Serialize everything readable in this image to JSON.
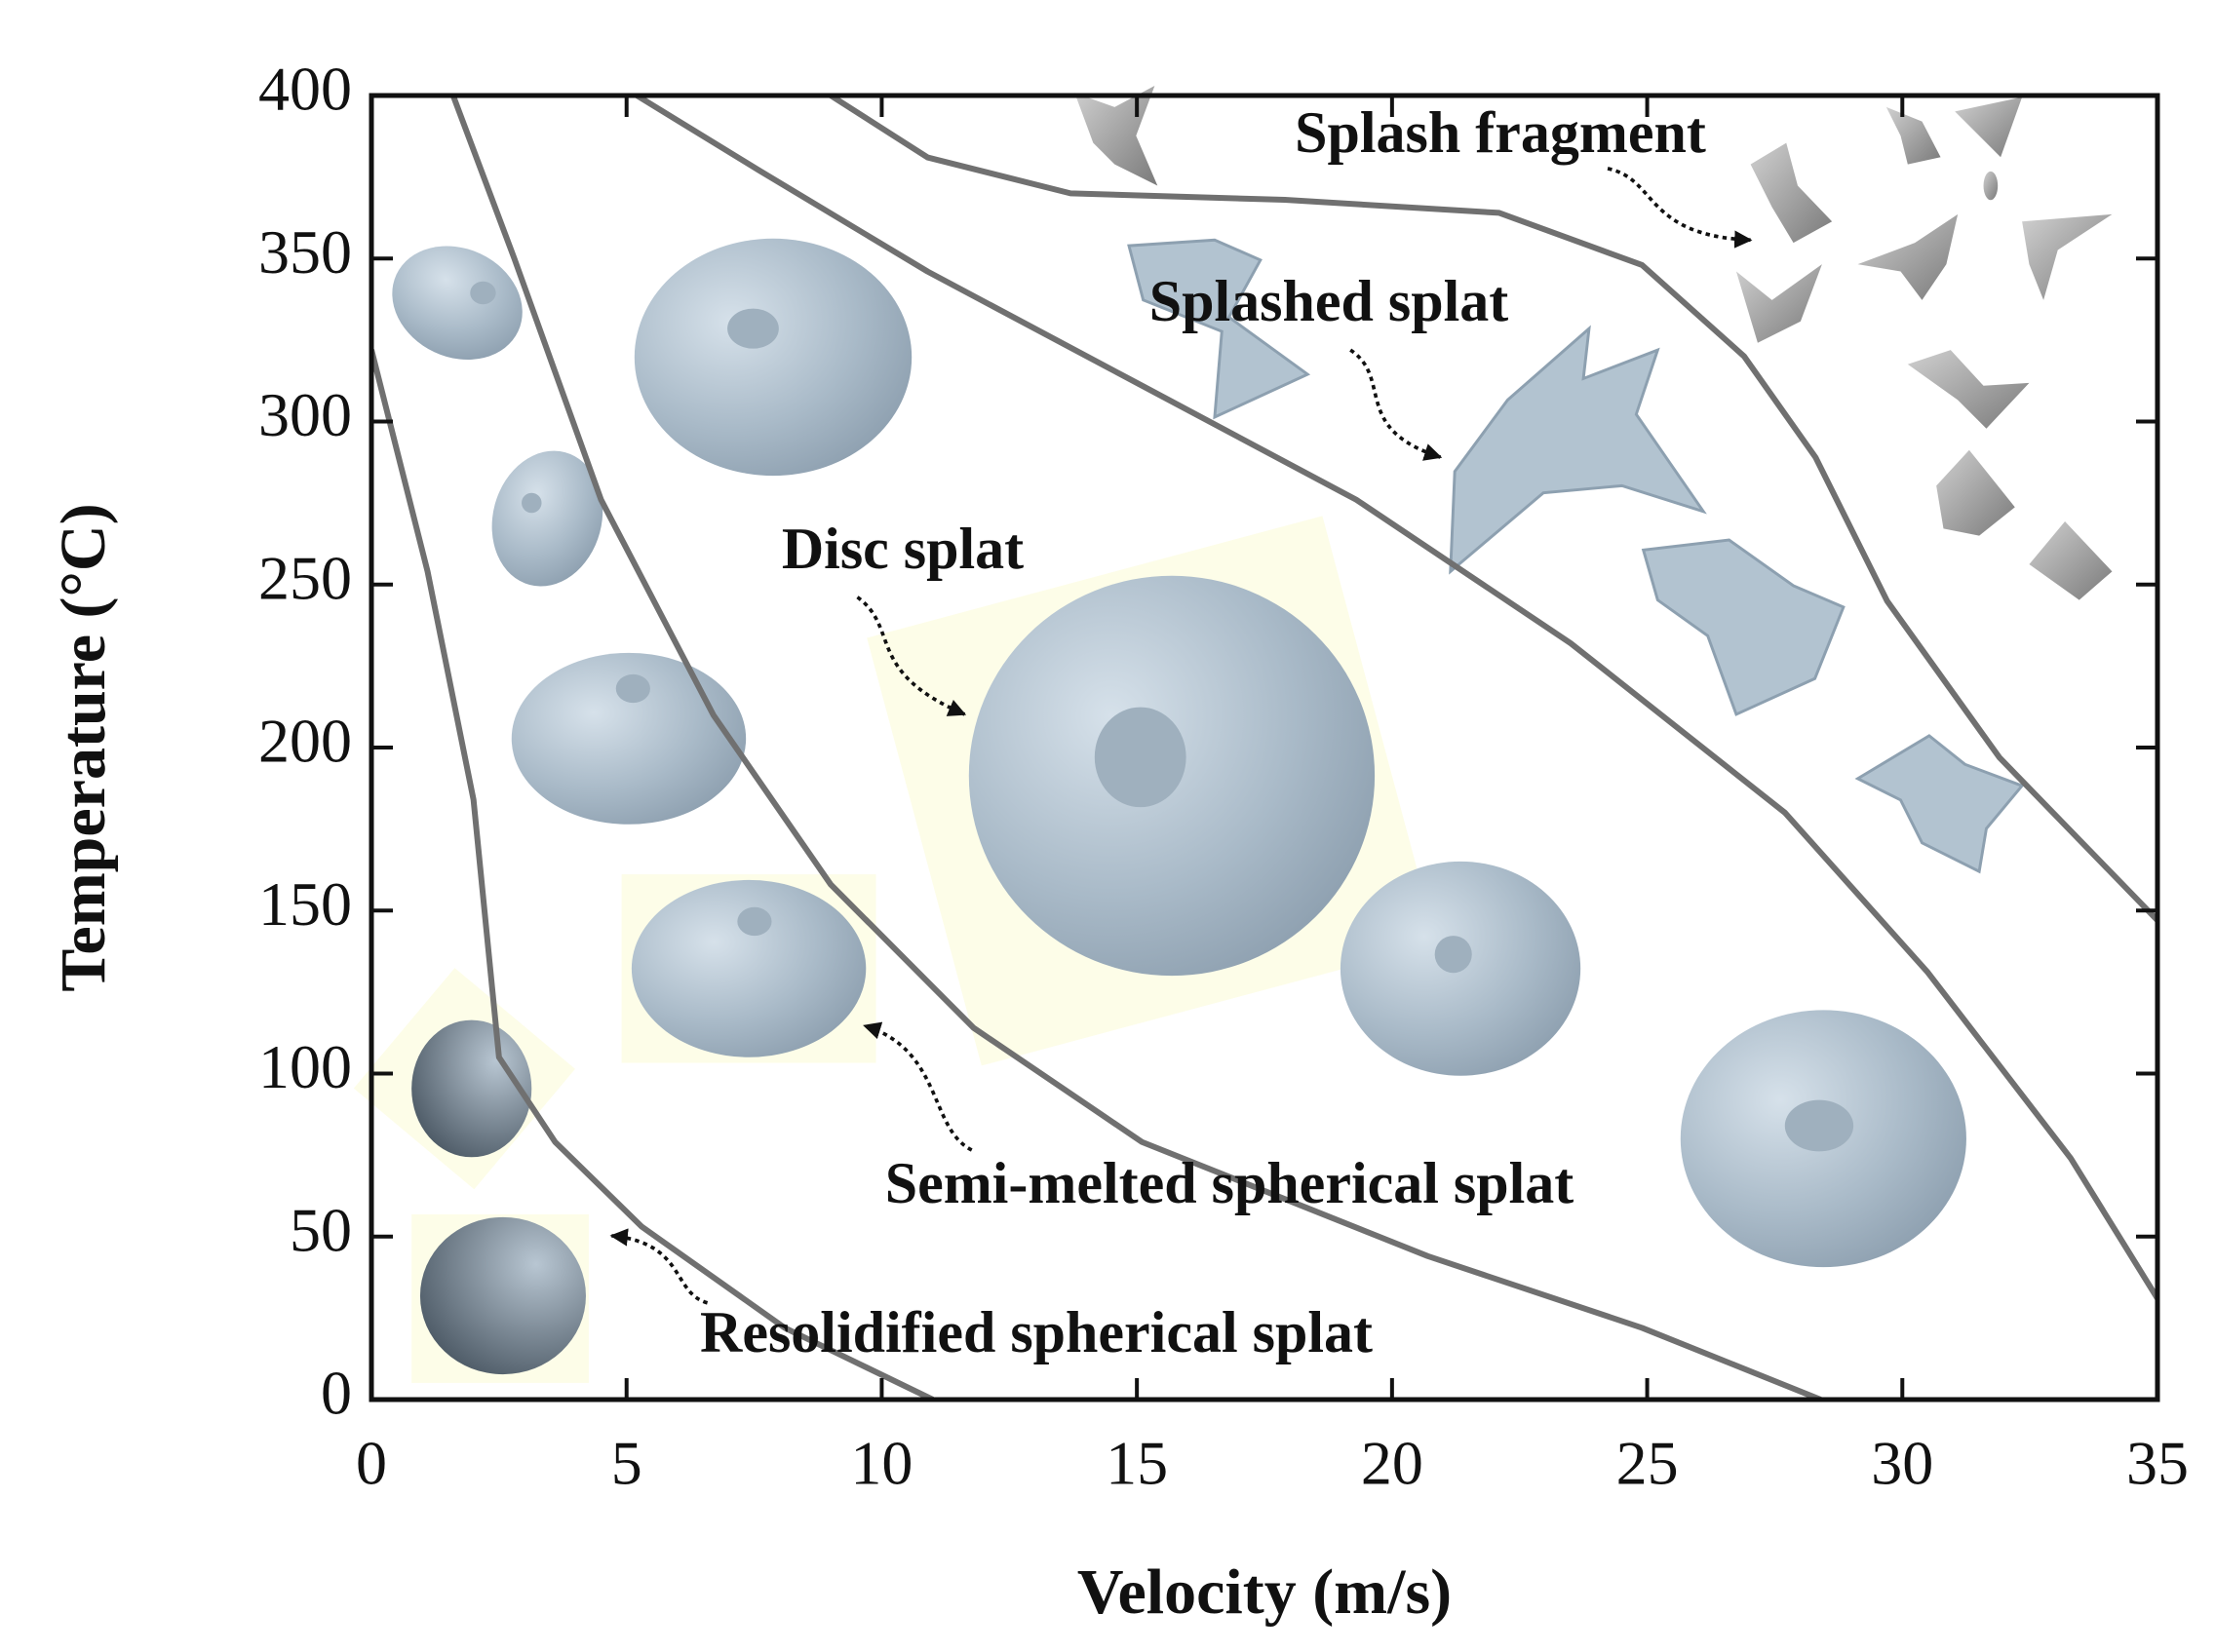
{
  "chart_data": {
    "type": "line",
    "xlabel": "Velocity (m/s)",
    "ylabel": "Temperature (°C)",
    "xlim": [
      0,
      35
    ],
    "ylim": [
      0,
      400
    ],
    "xticks": [
      0,
      5,
      10,
      15,
      20,
      25,
      30,
      35
    ],
    "yticks": [
      0,
      50,
      100,
      150,
      200,
      250,
      300,
      350,
      400
    ],
    "series": [
      {
        "color": "#707070",
        "x": [
          0,
          1.1,
          2.0,
          2.5,
          3.6,
          5.3,
          8.1,
          11.0
        ],
        "values": [
          322,
          254,
          184,
          105,
          79,
          53,
          22,
          0
        ]
      },
      {
        "color": "#707070",
        "x": [
          1.6,
          2.8,
          4.5,
          6.7,
          9.0,
          11.8,
          15.1,
          20.7,
          24.9,
          28.4
        ],
        "values": [
          400,
          350,
          276,
          210,
          158,
          114,
          79,
          44,
          22,
          0
        ]
      },
      {
        "color": "#707070",
        "x": [
          5.2,
          7.6,
          10.9,
          15.1,
          19.3,
          23.5,
          27.7,
          30.5,
          33.3,
          35
        ],
        "values": [
          400,
          377,
          346,
          311,
          276,
          232,
          180,
          131,
          74,
          31
        ]
      },
      {
        "color": "#707070",
        "x": [
          9.0,
          10.9,
          13.7,
          17.9,
          22.1,
          24.9,
          26.9,
          28.3,
          29.7,
          31.9,
          35
        ],
        "values": [
          400,
          381,
          370,
          368,
          364,
          348,
          320,
          289,
          245,
          197,
          147
        ]
      }
    ],
    "annotations": [
      "Splash fragment",
      "Splashed splat",
      "Disc splat",
      "Semi-melted spherical splat",
      "Resolidified spherical splat"
    ]
  }
}
